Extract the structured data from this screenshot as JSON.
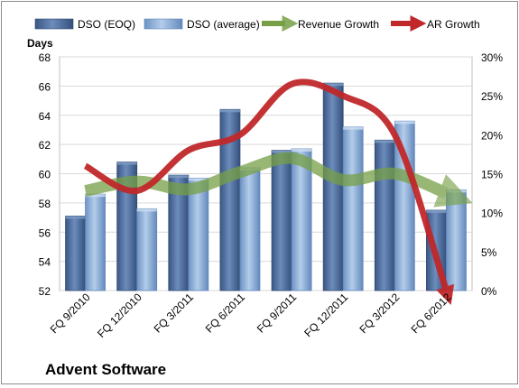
{
  "company": "Advent Software",
  "chart_data": {
    "type": "bar",
    "ylabel": "Days",
    "categories": [
      "FQ 9/2010",
      "FQ 12/2010",
      "FQ 3/2011",
      "FQ 6/2011",
      "FQ 9/2011",
      "FQ 12/2011",
      "FQ 3/2012",
      "FQ 6/2012"
    ],
    "ylim": [
      52,
      68
    ],
    "yticks": [
      "52",
      "54",
      "56",
      "58",
      "60",
      "62",
      "64",
      "66",
      "68"
    ],
    "y2lim": [
      0,
      30
    ],
    "y2ticks": [
      "0%",
      "5%",
      "10%",
      "15%",
      "20%",
      "25%",
      "30%"
    ],
    "legend_position": "top",
    "series": [
      {
        "name": "DSO (EOQ)",
        "type": "bar",
        "axis": "left",
        "color": "#4a6a9b",
        "values": [
          57.1,
          60.8,
          59.9,
          64.4,
          61.6,
          66.2,
          62.3,
          57.5
        ]
      },
      {
        "name": "DSO (average)",
        "type": "bar",
        "axis": "left",
        "color": "#7ba0d0",
        "values": [
          58.6,
          57.6,
          59.7,
          60.4,
          61.7,
          63.2,
          63.6,
          58.9
        ]
      },
      {
        "name": "Revenue Growth",
        "type": "line",
        "axis": "right",
        "color": "#77a046",
        "values": [
          12.8,
          14.0,
          13.0,
          15.2,
          17.0,
          14.2,
          15.0,
          12.5
        ]
      },
      {
        "name": "AR Growth",
        "type": "line",
        "axis": "right",
        "color": "#c0282a",
        "values": [
          16.0,
          12.8,
          18.0,
          20.0,
          26.5,
          25.0,
          20.0,
          0
        ]
      }
    ]
  }
}
